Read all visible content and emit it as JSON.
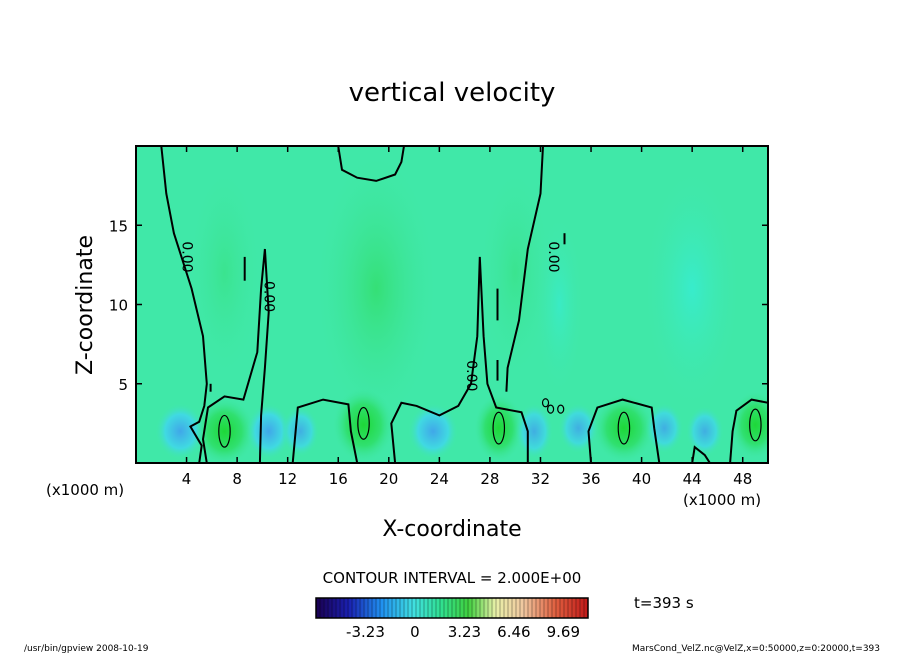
{
  "chart_data": {
    "type": "heatmap",
    "title": "vertical velocity",
    "xlabel": "X-coordinate",
    "ylabel": "Z-coordinate",
    "x_unit_left": "(x1000 m)",
    "x_unit_right": "(x1000 m)",
    "xlim": [
      0,
      50
    ],
    "ylim": [
      0,
      20
    ],
    "x_ticks": [
      4,
      8,
      12,
      16,
      20,
      24,
      28,
      32,
      36,
      40,
      44,
      48
    ],
    "y_ticks": [
      5,
      10,
      15
    ],
    "contour_labels": [
      {
        "text": "0.00",
        "x": 4,
        "z": 13
      },
      {
        "text": "0.00",
        "x": 10.5,
        "z": 10.5
      },
      {
        "text": "0.00",
        "x": 26.5,
        "z": 5.5
      },
      {
        "text": "0.00",
        "x": 33,
        "z": 13
      }
    ],
    "contour_interval": "CONTOUR INTERVAL = 2.000E+00",
    "time_label": "t=393 s",
    "colorbar": {
      "tick_labels": [
        "-3.23",
        "0",
        "3.23",
        "6.46",
        "9.69"
      ],
      "tick_values": [
        -3.23,
        0,
        3.23,
        6.46,
        9.69
      ],
      "range": [
        -6.46,
        11.3
      ],
      "colors": [
        "#1a0066",
        "#1030c8",
        "#20a0ff",
        "#40e8d8",
        "#30e890",
        "#40d040",
        "#f0f0a0",
        "#f0c080",
        "#e06040",
        "#c02020"
      ]
    },
    "background_color": "#40e8a8"
  },
  "footer": {
    "left": "/usr/bin/gpview   2008-10-19",
    "right": "MarsCond_VelZ.nc@VelZ,x=0:50000,z=0:20000,t=393"
  }
}
